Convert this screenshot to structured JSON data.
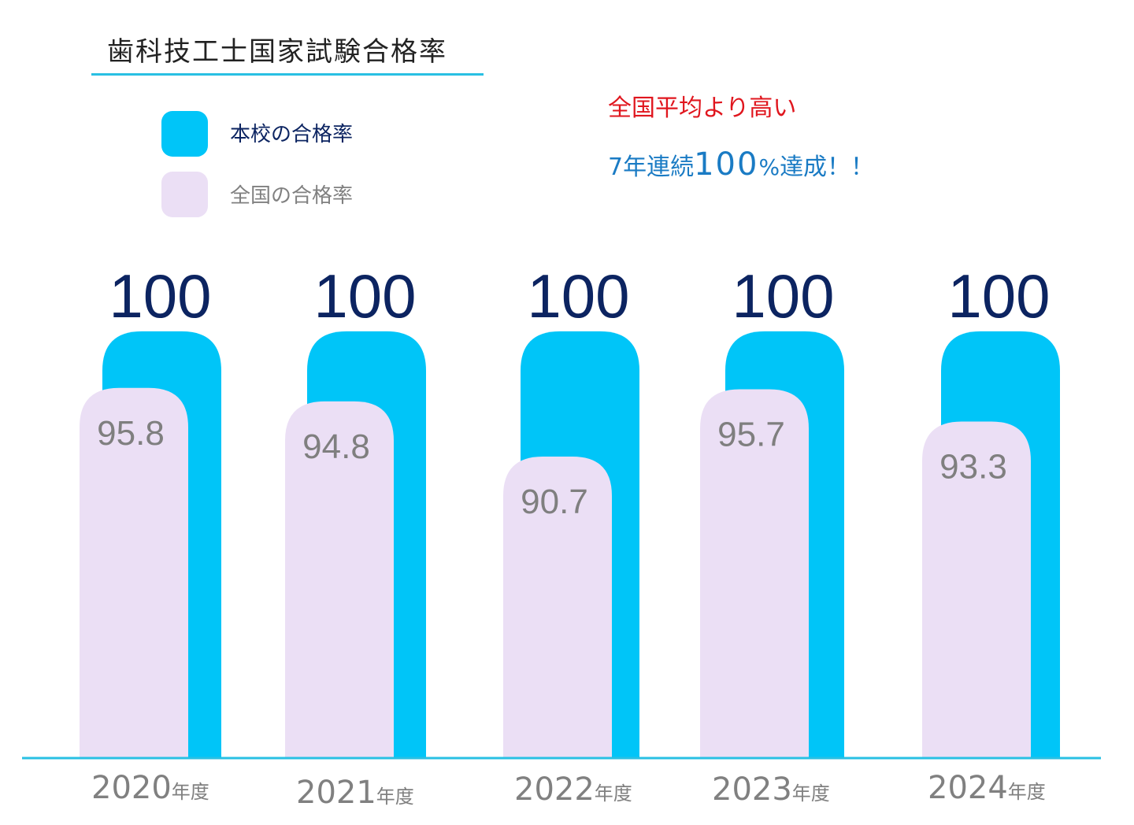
{
  "header": {
    "title": "歯科技工士国家試験合格率"
  },
  "legend": [
    {
      "label": "本校の合格率",
      "color": "#00c5f8",
      "text_color": "#0c2461"
    },
    {
      "label": "全国の合格率",
      "color": "#ebdff5",
      "text_color": "#808080"
    }
  ],
  "callouts": {
    "line1": "全国平均より高い",
    "line2_prefix": "7年連続",
    "line2_number": "100",
    "line2_percent": "%",
    "line2_suffix": "達成！！"
  },
  "chart_data": {
    "type": "bar",
    "title": "歯科技工士国家試験合格率",
    "xlabel": "",
    "ylabel": "",
    "categories": [
      "2020年度",
      "2021年度",
      "2022年度",
      "2023年度",
      "2024年度"
    ],
    "category_years": [
      "2020",
      "2021",
      "2022",
      "2023",
      "2024"
    ],
    "category_suffix": "年度",
    "series": [
      {
        "name": "本校の合格率",
        "color": "#00c5f8",
        "label_color": "#0c2461",
        "values": [
          100,
          100,
          100,
          100,
          100
        ]
      },
      {
        "name": "全国の合格率",
        "color": "#ebdff5",
        "label_color": "#7f7f7f",
        "values": [
          95.8,
          94.8,
          90.7,
          95.7,
          93.3
        ]
      }
    ],
    "grid": false,
    "legend_position": "top-left",
    "baseline_color": "#29c0e3"
  }
}
